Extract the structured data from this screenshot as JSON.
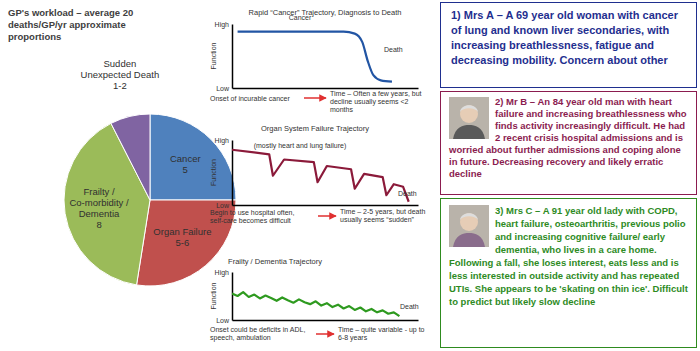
{
  "chart_data": [
    {
      "type": "pie",
      "title": "GP's workload – average 20 deaths/GP/yr approximate proportions",
      "categories": [
        "Cancer",
        "Organ Failure",
        "Frailty / Co-morbidity / Dementia",
        "Sudden Unexpected Death"
      ],
      "values": [
        5,
        5.5,
        8,
        1.5
      ],
      "value_labels": [
        "5",
        "5-6",
        "8",
        "1-2"
      ],
      "colors": [
        "#4f81bd",
        "#c0504d",
        "#9bbb59",
        "#8064a2"
      ],
      "data_labels": true
    },
    {
      "type": "line",
      "title": "Rapid “Cancer” Trajectory, Diagnosis to Death",
      "ylabel": "Function",
      "xlabel": "Time – Often a few years, but decline usually seems <2 months",
      "annotations": [
        "Cancer",
        "Death",
        "Onset of incurable cancer"
      ],
      "x": [
        0.3,
        6.0,
        6.6,
        7.0,
        7.3,
        7.6,
        8.0,
        8.6
      ],
      "values": [
        8.8,
        8.8,
        8.5,
        7.2,
        4.2,
        2.0,
        1.2,
        1.0
      ],
      "color": "#2255a4",
      "xlim": [
        0,
        10
      ],
      "ylim": [
        0,
        10
      ],
      "yticks": [
        {
          "value": 10,
          "label": "High"
        },
        {
          "value": 0,
          "label": "Low"
        }
      ],
      "tick_labels": "y"
    },
    {
      "type": "line",
      "title": "Organ System Failure Trajectory",
      "ylabel": "Function",
      "xlabel": "Time – 2-5 years, but death usually seems “sudden”",
      "annotations": [
        "(mostly heart and lung failure)",
        "Death",
        "Begin to use hospital often, self-care becomes difficult"
      ],
      "x": [
        0,
        2.0,
        2.2,
        2.8,
        4.4,
        4.6,
        5.1,
        6.4,
        6.6,
        7.1,
        8.1,
        8.3,
        8.7,
        9.2,
        9.5
      ],
      "values": [
        8.5,
        7.8,
        4.5,
        7.0,
        6.6,
        3.5,
        6.0,
        5.5,
        2.5,
        4.8,
        4.3,
        1.5,
        3.2,
        2.8,
        0.5
      ],
      "color": "#8b1a3a",
      "xlim": [
        0,
        10
      ],
      "ylim": [
        0,
        10
      ],
      "yticks": [
        {
          "value": 10,
          "label": "High"
        },
        {
          "value": 0,
          "label": "Low"
        }
      ],
      "tick_labels": "y"
    },
    {
      "type": "line",
      "title": "Frailty / Dementia Trajectory",
      "ylabel": "Function",
      "xlabel": "Time – quite variable - up to 6-8 years",
      "annotations": [
        "Death",
        "Onset could be deficits in ADL, speech, ambulation"
      ],
      "x": [
        0,
        0.3,
        0.6,
        0.9,
        1.2,
        1.5,
        1.8,
        2.1,
        2.4,
        2.7,
        3.0,
        3.3,
        3.6,
        3.9,
        4.2,
        4.5,
        4.8,
        5.1,
        5.4,
        5.7,
        6.0,
        6.3,
        6.6,
        6.9,
        7.2,
        7.5,
        7.8,
        8.1,
        8.4,
        8.7,
        9.0
      ],
      "values": [
        5.5,
        5.0,
        5.8,
        4.8,
        5.3,
        4.5,
        5.1,
        4.6,
        4.0,
        4.7,
        4.1,
        3.6,
        4.3,
        3.7,
        3.3,
        3.9,
        3.0,
        3.5,
        2.7,
        3.2,
        2.4,
        2.9,
        2.1,
        2.6,
        1.8,
        2.3,
        1.6,
        2.0,
        1.3,
        1.6,
        0.8
      ],
      "color": "#2e9a1f",
      "xlim": [
        0,
        10
      ],
      "ylim": [
        0,
        10
      ],
      "yticks": [
        {
          "value": 10,
          "label": "High"
        },
        {
          "value": 0,
          "label": "Low"
        }
      ],
      "tick_labels": "y"
    }
  ],
  "cases": [
    {
      "text": "1) Mrs A – A 69 year old woman with cancer of lung and known liver secondaries, with increasing breathlessness, fatigue and decreasing mobility. Concern about other",
      "color": "#1f2f8f"
    },
    {
      "text": "2) Mr B – An 84 year old man with heart failure and increasing breathlessness who finds activity increasingly difficult. He had 2 recent crisis hospital admissions and is worried about further admissions and coping alone in future. Decreasing recovery and likely erratic decline",
      "color": "#8b1c4f"
    },
    {
      "text": "3) Mrs C – A 91 year old lady with COPD, heart failure, osteoarthritis, previous polio and increasing cognitive failure/ early dementia, who lives in a care home. Following a fall, she loses interest, eats less and is less interested in outside activity and has repeated UTIs. She appears to be 'skating on thin ice'. Difficult to predict but likely slow decline",
      "color": "#2e8b1f"
    }
  ]
}
